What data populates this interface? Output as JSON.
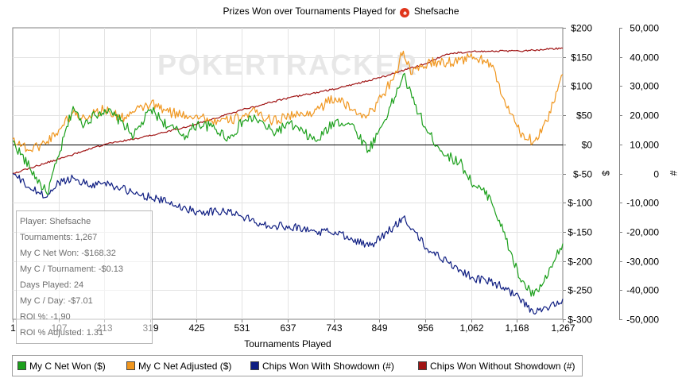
{
  "title": {
    "prefix": "Prizes Won over Tournaments Played for",
    "player": "Shefsache"
  },
  "watermark": "POKERTRACKER",
  "info_box": {
    "lines": [
      "Player: Shefsache",
      "Tournaments: 1,267",
      "My C Net Won: -$168.32",
      "My C / Tournament: -$0.13",
      "Days Played: 24",
      "My C / Day: -$7.01",
      "ROI %: -1,90",
      "ROI % Adjusted: 1.31"
    ]
  },
  "chart_data": {
    "type": "line",
    "title": "Prizes Won over Tournaments Played for Shefsache",
    "xlabel": "Tournaments Played",
    "ylabel_right1": "$",
    "ylabel_right2": "#",
    "xlim": [
      1,
      1267
    ],
    "x_ticks": [
      "1",
      "107",
      "213",
      "319",
      "425",
      "531",
      "637",
      "743",
      "849",
      "956",
      "1,062",
      "1,168",
      "1,267"
    ],
    "y1_lim": [
      -300,
      200
    ],
    "y1_ticks": [
      "$200",
      "$150",
      "$100",
      "$50",
      "$0",
      "$-50",
      "$-100",
      "$-150",
      "$-200",
      "$-250",
      "$-300"
    ],
    "y2_lim": [
      -50000,
      50000
    ],
    "y2_ticks": [
      "50,000",
      "40,000",
      "30,000",
      "20,000",
      "10,000",
      "0",
      "-10,000",
      "-20,000",
      "-30,000",
      "-40,000",
      "-50,000"
    ],
    "zero_line": 0,
    "grid": true,
    "legend_position": "bottom",
    "series": [
      {
        "name": "My C Net Won ($)",
        "axis": "left",
        "color": "#1ca01c",
        "x": [
          1,
          40,
          80,
          107,
          140,
          160,
          190,
          213,
          250,
          280,
          319,
          360,
          400,
          425,
          460,
          500,
          531,
          560,
          600,
          637,
          670,
          700,
          743,
          780,
          820,
          849,
          880,
          900,
          920,
          956,
          1000,
          1030,
          1062,
          1100,
          1130,
          1168,
          1200,
          1230,
          1267
        ],
        "values": [
          5,
          -40,
          -85,
          -20,
          65,
          35,
          50,
          60,
          40,
          15,
          60,
          30,
          15,
          35,
          30,
          10,
          40,
          45,
          20,
          35,
          20,
          5,
          40,
          35,
          -10,
          30,
          80,
          120,
          80,
          20,
          -20,
          -30,
          -70,
          -90,
          -150,
          -230,
          -260,
          -230,
          -170
        ]
      },
      {
        "name": "My C Net Adjusted ($)",
        "axis": "left",
        "color": "#f0961e",
        "x": [
          1,
          40,
          80,
          107,
          140,
          160,
          190,
          213,
          250,
          280,
          319,
          360,
          400,
          425,
          460,
          500,
          531,
          560,
          600,
          637,
          670,
          700,
          743,
          780,
          820,
          849,
          880,
          900,
          920,
          956,
          1000,
          1030,
          1062,
          1100,
          1130,
          1168,
          1200,
          1230,
          1267
        ],
        "values": [
          10,
          -10,
          5,
          25,
          55,
          45,
          55,
          60,
          45,
          55,
          70,
          55,
          50,
          50,
          40,
          40,
          50,
          55,
          40,
          50,
          50,
          60,
          80,
          60,
          50,
          80,
          120,
          160,
          120,
          140,
          140,
          145,
          150,
          140,
          80,
          20,
          5,
          40,
          120
        ]
      },
      {
        "name": "Chips Won With Showdown (#)",
        "axis": "right",
        "color": "#0f1e82",
        "x": [
          1,
          40,
          80,
          107,
          140,
          180,
          213,
          250,
          280,
          319,
          360,
          400,
          425,
          470,
          500,
          531,
          570,
          600,
          637,
          670,
          700,
          743,
          780,
          820,
          849,
          880,
          900,
          920,
          956,
          1000,
          1030,
          1062,
          1100,
          1130,
          1168,
          1200,
          1230,
          1267
        ],
        "values": [
          0,
          -5000,
          -8000,
          -3000,
          -1500,
          -4000,
          -3000,
          -5000,
          -7000,
          -8000,
          -10000,
          -12000,
          -13000,
          -13000,
          -13000,
          -15000,
          -17000,
          -18000,
          -18000,
          -19000,
          -20000,
          -20000,
          -22000,
          -25000,
          -22000,
          -18000,
          -15000,
          -19000,
          -26000,
          -30000,
          -33000,
          -36000,
          -37000,
          -39000,
          -43000,
          -48000,
          -46000,
          -43000
        ]
      },
      {
        "name": "Chips Won Without Showdown (#)",
        "axis": "right",
        "color": "#a01414",
        "x": [
          1,
          107,
          213,
          319,
          425,
          531,
          637,
          743,
          849,
          956,
          1000,
          1062,
          1168,
          1267
        ],
        "values": [
          0,
          5000,
          10000,
          13000,
          17000,
          22000,
          26000,
          29000,
          33000,
          38000,
          41000,
          42000,
          42000,
          43000
        ]
      }
    ]
  }
}
